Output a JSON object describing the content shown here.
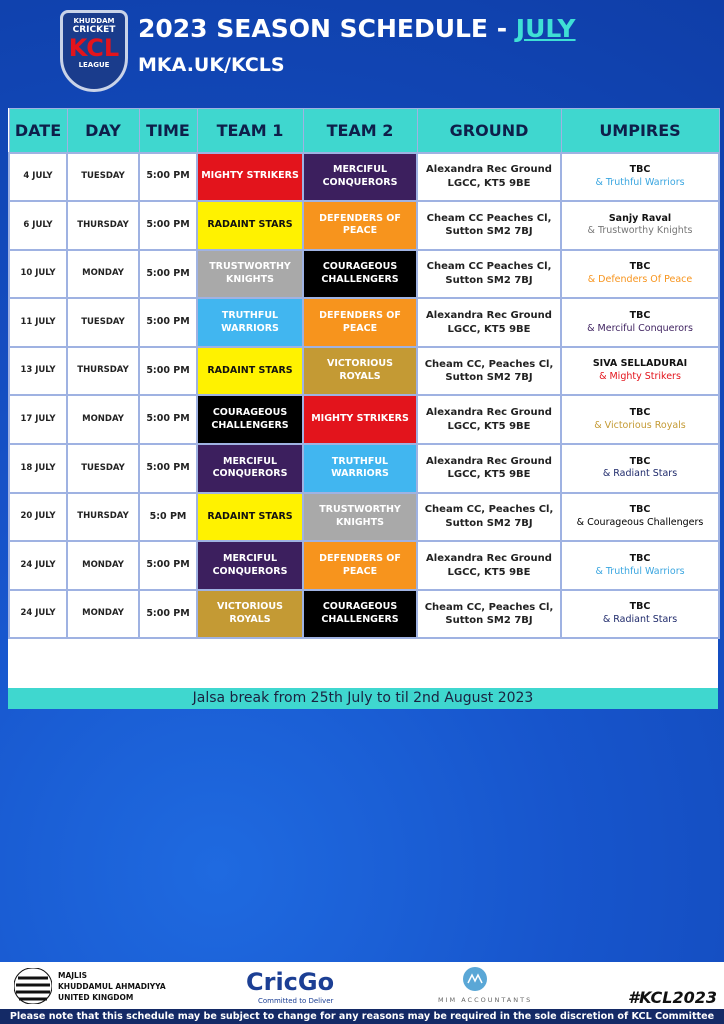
{
  "header": {
    "logo": {
      "top": "KHUDDAM",
      "middle": "CRICKET",
      "main": "KCL",
      "bottom": "LEAGUE"
    },
    "title": "2023 SEASON SCHEDULE - ",
    "title_highlight": "JULY",
    "subtitle": "MKA.UK/KCLS"
  },
  "table": {
    "columns": [
      "DATE",
      "DAY",
      "TIME",
      "TEAM 1",
      "TEAM 2",
      "GROUND",
      "UMPIRES"
    ],
    "rows": [
      {
        "date": "4 JULY",
        "day": "TUESDAY",
        "time": "5:00 PM",
        "team1": {
          "name": "MIGHTY STRIKERS",
          "color": "#e3141c"
        },
        "team2": {
          "name": "MERCIFUL CONQUERORS",
          "color": "#3c1f5e"
        },
        "ground": "Alexandra Rec Ground LGCC, KT5 9BE",
        "umpire": "TBC",
        "umpire_team": {
          "name": "& Truthful Warriors",
          "color": "#3aa6e0"
        }
      },
      {
        "date": "6 JULY",
        "day": "THURSDAY",
        "time": "5:00 PM",
        "team1": {
          "name": "RADAINT STARS",
          "color": "#fff200"
        },
        "team2": {
          "name": "DEFENDERS OF PEACE",
          "color": "#f7941d"
        },
        "ground": "Cheam CC Peaches Cl, Sutton SM2 7BJ",
        "umpire": "Sanjy Raval",
        "umpire_team": {
          "name": "& Trustworthy Knights",
          "color": "#777777"
        }
      },
      {
        "date": "10 JULY",
        "day": "MONDAY",
        "time": "5:00 PM",
        "team1": {
          "name": "TRUSTWORTHY KNIGHTS",
          "color": "#a9a9a9"
        },
        "team2": {
          "name": "COURAGEOUS CHALLENGERS",
          "color": "#000000"
        },
        "ground": "Cheam CC Peaches Cl, Sutton SM2 7BJ",
        "umpire": "TBC",
        "umpire_team": {
          "name": "& Defenders Of Peace",
          "color": "#f7941d"
        }
      },
      {
        "date": "11 JULY",
        "day": "TUESDAY",
        "time": "5:00 PM",
        "team1": {
          "name": "TRUTHFUL WARRIORS",
          "color": "#41b6f0"
        },
        "team2": {
          "name": "DEFENDERS OF PEACE",
          "color": "#f7941d"
        },
        "ground": "Alexandra Rec Ground LGCC, KT5 9BE",
        "umpire": "TBC",
        "umpire_team": {
          "name": "& Merciful Conquerors",
          "color": "#3c1f5e"
        }
      },
      {
        "date": "13 JULY",
        "day": "THURSDAY",
        "time": "5:00 PM",
        "team1": {
          "name": "RADAINT STARS",
          "color": "#fff200"
        },
        "team2": {
          "name": "VICTORIOUS ROYALS",
          "color": "#c49a34"
        },
        "ground": "Cheam CC, Peaches Cl, Sutton SM2 7BJ",
        "umpire": "SIVA SELLADURAI",
        "umpire_team": {
          "name": "& Mighty Strikers",
          "color": "#e3141c"
        }
      },
      {
        "date": "17 JULY",
        "day": "MONDAY",
        "time": "5:00 PM",
        "team1": {
          "name": "COURAGEOUS CHALLENGERS",
          "color": "#000000"
        },
        "team2": {
          "name": "MIGHTY STRIKERS",
          "color": "#e3141c"
        },
        "ground": "Alexandra Rec Ground LGCC, KT5 9BE",
        "umpire": "TBC",
        "umpire_team": {
          "name": "& Victorious Royals",
          "color": "#c49a34"
        }
      },
      {
        "date": "18 JULY",
        "day": "TUESDAY",
        "time": "5:00 PM",
        "team1": {
          "name": "MERCIFUL CONQUERORS",
          "color": "#3c1f5e"
        },
        "team2": {
          "name": "TRUTHFUL WARRIORS",
          "color": "#41b6f0"
        },
        "ground": "Alexandra Rec Ground LGCC, KT5 9BE",
        "umpire": "TBC",
        "umpire_team": {
          "name": "& Radiant Stars",
          "color": "#1f2a6b"
        }
      },
      {
        "date": "20 JULY",
        "day": "THURSDAY",
        "time": "5:0 PM",
        "team1": {
          "name": "RADAINT STARS",
          "color": "#fff200"
        },
        "team2": {
          "name": "TRUSTWORTHY KNIGHTS",
          "color": "#a9a9a9"
        },
        "ground": "Cheam CC, Peaches Cl, Sutton SM2 7BJ",
        "umpire": "TBC",
        "umpire_team": {
          "name": "& Courageous Challengers",
          "color": "#000000"
        }
      },
      {
        "date": "24 JULY",
        "day": "MONDAY",
        "time": "5:00 PM",
        "team1": {
          "name": "MERCIFUL CONQUERORS",
          "color": "#3c1f5e"
        },
        "team2": {
          "name": "DEFENDERS OF PEACE",
          "color": "#f7941d"
        },
        "ground": "Alexandra Rec Ground LGCC, KT5 9BE",
        "umpire": "TBC",
        "umpire_team": {
          "name": "& Truthful Warriors",
          "color": "#3aa6e0"
        }
      },
      {
        "date": "24 JULY",
        "day": "MONDAY",
        "time": "5:00 PM",
        "team1": {
          "name": "VICTORIOUS ROYALS",
          "color": "#c49a34"
        },
        "team2": {
          "name": "COURAGEOUS CHALLENGERS",
          "color": "#000000"
        },
        "ground": "Cheam CC, Peaches Cl, Sutton SM2 7BJ",
        "umpire": "TBC",
        "umpire_team": {
          "name": "& Radiant Stars",
          "color": "#1f2a6b"
        }
      }
    ]
  },
  "note": "Jalsa break from 25th July to til 2nd August 2023",
  "footer": {
    "org": [
      "MAJLIS",
      "KHUDDAMUL AHMADIYYA",
      "UNITED KINGDOM"
    ],
    "sponsor1": {
      "name": "CricGo",
      "tagline": "Committed to Deliver"
    },
    "sponsor2": "MIM ACCOUNTANTS",
    "hashtag": "#KCL2023",
    "disclaimer": "Please note that this schedule may be subject to change for any reasons may be required in the sole discretion of KCL Committee"
  }
}
